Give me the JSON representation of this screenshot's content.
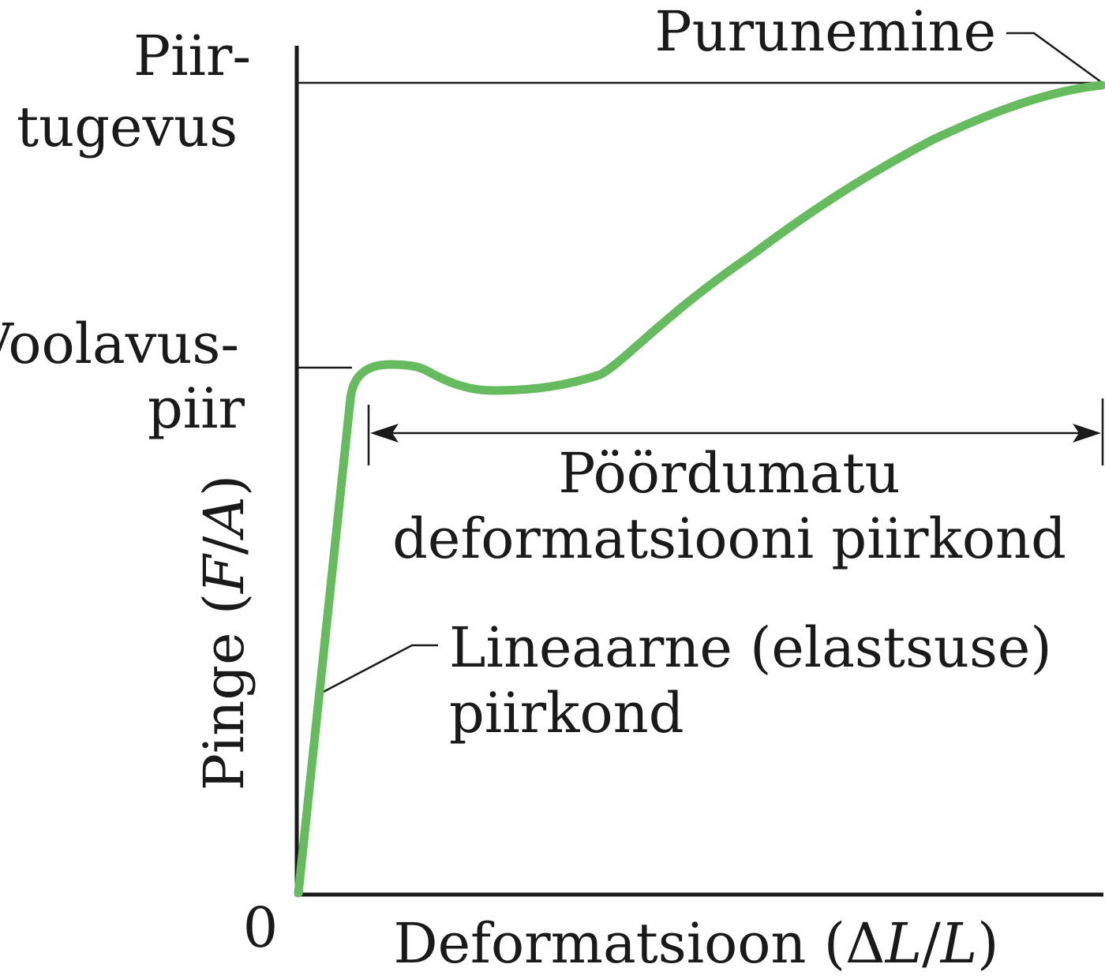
{
  "labels": {
    "ultimate_strength_line1": "Piir-",
    "ultimate_strength_line2": "tugevus",
    "yield_point_line1": "Voolavus-",
    "yield_point_line2": "piir",
    "fracture": "Purunemine",
    "origin": "0",
    "plastic_region_line1": "Pöördumatu",
    "plastic_region_line2": "deformatsiooni piirkond",
    "linear_region_line1": "Lineaarne (elastsuse)",
    "linear_region_line2": "piirkond"
  },
  "y_axis": {
    "prefix": "Pinge (",
    "var1": "F",
    "slash": "/",
    "var2": "A",
    "suffix": ")"
  },
  "x_axis": {
    "prefix": "Deformatsioon (",
    "delta": "Δ",
    "var1": "L",
    "slash": "/",
    "var2": "L",
    "suffix": ")"
  },
  "colors": {
    "curve": "#66bb5e",
    "ink": "#1a1a1a"
  }
}
